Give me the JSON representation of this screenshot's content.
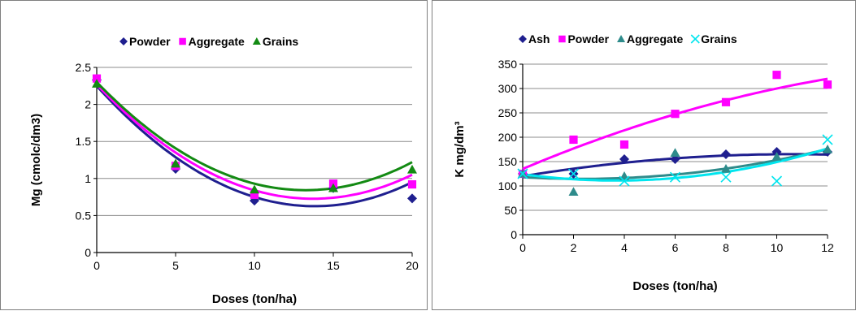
{
  "chart_data": [
    {
      "type": "scatter",
      "xlabel": "Doses (ton/ha)",
      "ylabel": "Mg (cmolc/dm3)",
      "xlim": [
        0,
        20
      ],
      "ylim": [
        0,
        2.5
      ],
      "x_ticks": [
        "0",
        "5",
        "10",
        "15",
        "20"
      ],
      "y_ticks": [
        "0",
        "0.5",
        "1",
        "1.5",
        "2",
        "2.5"
      ],
      "grid": "horizontal",
      "legend_position": "top",
      "series": [
        {
          "name": "Powder",
          "marker": "diamond",
          "color": "#1f1f8f",
          "x": [
            0,
            5,
            10,
            15,
            20
          ],
          "y": [
            2.33,
            1.13,
            0.7,
            0.87,
            0.73
          ],
          "trend": [
            2.25,
            -0.235,
            0.0085
          ]
        },
        {
          "name": "Aggregate",
          "marker": "square",
          "color": "#ff00ff",
          "x": [
            0,
            5,
            10,
            15,
            20
          ],
          "y": [
            2.35,
            1.17,
            0.78,
            0.93,
            0.92
          ],
          "trend": [
            2.27,
            -0.225,
            0.0082
          ]
        },
        {
          "name": "Grains",
          "marker": "triangle",
          "color": "#138a13",
          "x": [
            0,
            5,
            10,
            15,
            20
          ],
          "y": [
            2.28,
            1.2,
            0.85,
            0.87,
            1.12
          ],
          "trend": [
            2.3,
            -0.22,
            0.0083
          ]
        }
      ]
    },
    {
      "type": "scatter",
      "xlabel": "Doses (ton/ha)",
      "ylabel": "K mg/dm³",
      "xlim": [
        0,
        12
      ],
      "ylim": [
        0,
        350
      ],
      "x_ticks": [
        "0",
        "2",
        "4",
        "6",
        "8",
        "10",
        "12"
      ],
      "y_ticks": [
        "0",
        "50",
        "100",
        "150",
        "200",
        "250",
        "300",
        "350"
      ],
      "grid": "horizontal",
      "legend_position": "top",
      "series": [
        {
          "name": "Ash",
          "marker": "diamond",
          "color": "#1f1f8f",
          "x": [
            0,
            2,
            4,
            6,
            8,
            10,
            12
          ],
          "y": [
            125,
            125,
            155,
            155,
            165,
            170,
            170
          ],
          "trend": [
            120,
            8.5,
            -0.4
          ]
        },
        {
          "name": "Powder",
          "marker": "square",
          "color": "#ff00ff",
          "x": [
            0,
            2,
            4,
            6,
            8,
            10,
            12
          ],
          "y": [
            125,
            195,
            185,
            248,
            272,
            328,
            308
          ],
          "trend": [
            135,
            22,
            -0.55
          ]
        },
        {
          "name": "Aggregate",
          "marker": "triangle",
          "color": "#2e8b8b",
          "x": [
            0,
            2,
            4,
            6,
            8,
            10,
            12
          ],
          "y": [
            125,
            88,
            120,
            168,
            135,
            160,
            175
          ],
          "trend": [
            118,
            -3,
            0.65
          ]
        },
        {
          "name": "Grains",
          "marker": "x",
          "color": "#00e5ee",
          "x": [
            0,
            2,
            4,
            6,
            8,
            10,
            12
          ],
          "y": [
            125,
            125,
            110,
            118,
            118,
            110,
            195
          ],
          "trend": [
            124,
            -7,
            0.95
          ]
        }
      ]
    }
  ]
}
